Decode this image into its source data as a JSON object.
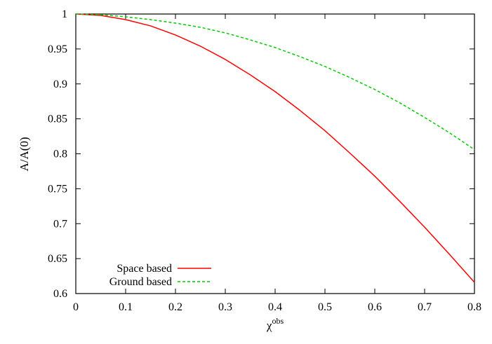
{
  "chart_data": {
    "type": "line",
    "title": "",
    "xlabel": "χ",
    "xlabel_superscript": "obs",
    "ylabel": "A/A(0)",
    "xlim": [
      0,
      0.8
    ],
    "ylim": [
      0.6,
      1.0
    ],
    "grid": false,
    "legend_position": "bottom-left",
    "x_ticks": [
      0,
      0.1,
      0.2,
      0.3,
      0.4,
      0.5,
      0.6,
      0.7,
      0.8
    ],
    "x_tick_labels": [
      "0",
      "0.1",
      "0.2",
      "0.3",
      "0.4",
      "0.5",
      "0.6",
      "0.7",
      "0.8"
    ],
    "y_ticks": [
      0.6,
      0.65,
      0.7,
      0.75,
      0.8,
      0.85,
      0.9,
      0.95,
      1.0
    ],
    "y_tick_labels": [
      "0.6",
      "0.65",
      "0.7",
      "0.75",
      "0.8",
      "0.85",
      "0.9",
      "0.95",
      "1"
    ],
    "series": [
      {
        "name": "Space based",
        "color": "#ff0000",
        "dash": "solid",
        "x": [
          0,
          0.05,
          0.1,
          0.15,
          0.2,
          0.25,
          0.3,
          0.35,
          0.4,
          0.45,
          0.5,
          0.55,
          0.6,
          0.65,
          0.7,
          0.75,
          0.8
        ],
        "y": [
          1.0,
          0.998,
          0.992,
          0.983,
          0.97,
          0.954,
          0.935,
          0.913,
          0.889,
          0.862,
          0.833,
          0.801,
          0.768,
          0.732,
          0.695,
          0.656,
          0.616
        ]
      },
      {
        "name": "Ground based",
        "color": "#00cc00",
        "dash": "dashed",
        "x": [
          0,
          0.05,
          0.1,
          0.15,
          0.2,
          0.25,
          0.3,
          0.35,
          0.4,
          0.45,
          0.5,
          0.55,
          0.6,
          0.65,
          0.7,
          0.75,
          0.8
        ],
        "y": [
          1.0,
          0.999,
          0.996,
          0.992,
          0.987,
          0.981,
          0.973,
          0.963,
          0.952,
          0.939,
          0.925,
          0.909,
          0.892,
          0.873,
          0.852,
          0.83,
          0.806
        ]
      }
    ]
  }
}
